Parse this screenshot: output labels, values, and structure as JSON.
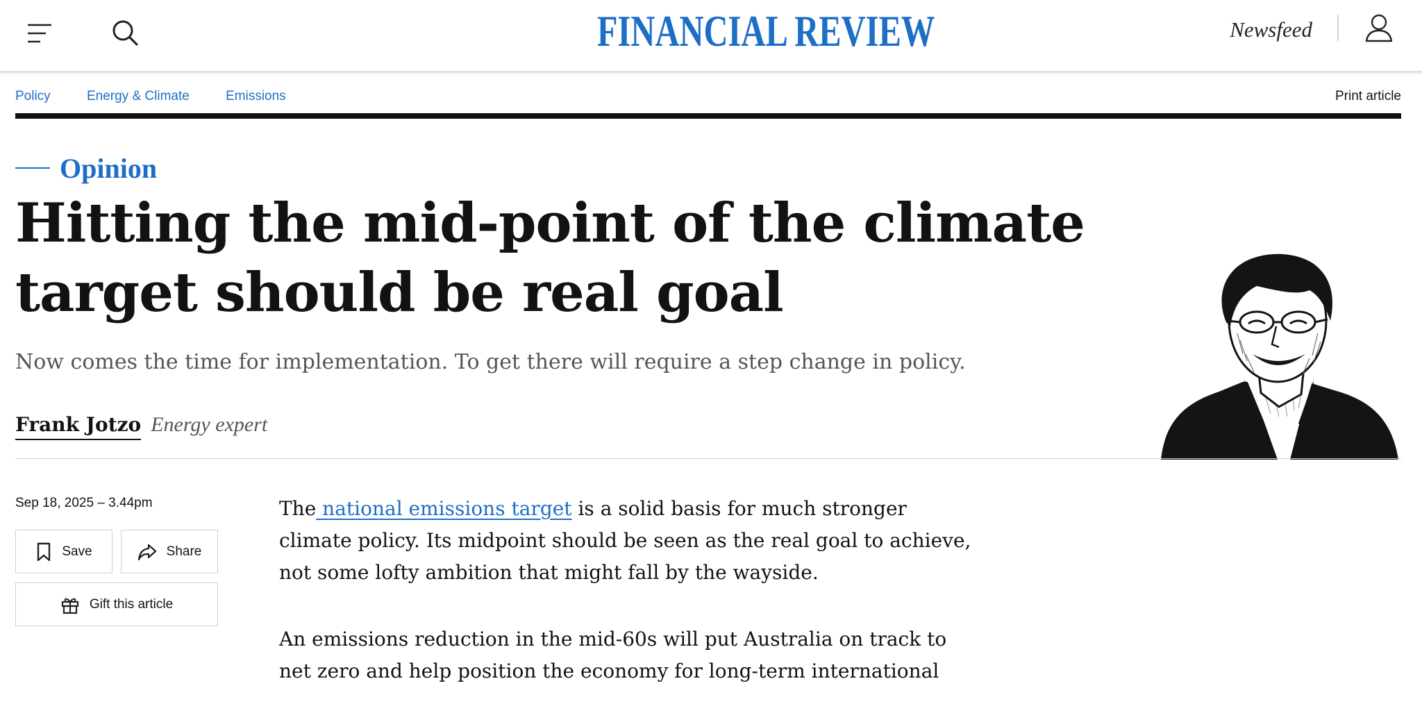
{
  "header": {
    "logo": "FINANCIAL REVIEW",
    "newsfeed_label": "Newsfeed",
    "accent_color": "#1d6ec7"
  },
  "icons": {
    "menu": "hamburger-menu-icon",
    "search": "search-icon",
    "account": "user-icon",
    "save": "bookmark-icon",
    "share": "share-arrow-icon",
    "gift": "gift-icon"
  },
  "breadcrumbs": [
    "Policy",
    "Energy & Climate",
    "Emissions"
  ],
  "print_label": "Print article",
  "article": {
    "section": "Opinion",
    "headline": "Hitting the mid-point of the climate target should be real goal",
    "standfirst": "Now comes the time for implementation. To get there will require a step change in policy.",
    "author": "Frank Jotzo",
    "author_role": "Energy expert",
    "date": "Sep 18, 2025 – 3.44pm",
    "actions": {
      "save": "Save",
      "share": "Share",
      "gift": "Gift this article"
    },
    "paragraph1": {
      "before": "The",
      "link": " national emissions target",
      "after": " is a solid basis for much stronger climate policy. Its midpoint should be seen as the real goal to achieve, not some lofty ambition that might fall by the wayside."
    },
    "paragraph2": "An emissions reduction in the mid-60s will put Australia on track to net zero and help position the economy for long-term international"
  }
}
